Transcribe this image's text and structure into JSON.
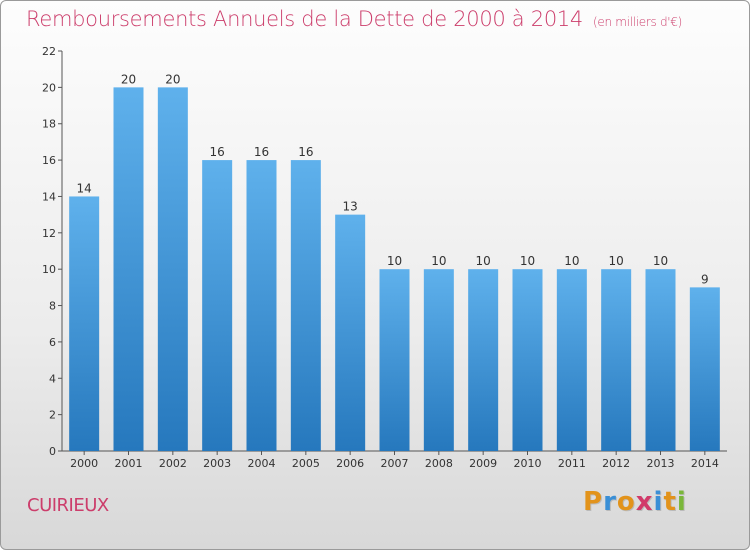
{
  "title": "Remboursements Annuels de la Dette de 2000 à 2014",
  "subtitle": "(en milliers d'€)",
  "location": "CUIRIEUX",
  "logo": {
    "text": "Proxiti",
    "colors": [
      "#e2931b",
      "#3a8fd6",
      "#e2931b",
      "#d13a6a",
      "#3a8fd6",
      "#e2931b",
      "#7ab73a"
    ]
  },
  "colors": {
    "title": "#cc3d6b",
    "bar_top": "#5fb1ec",
    "bar_bottom": "#2678bd",
    "axis": "#555555"
  },
  "chart_data": {
    "type": "bar",
    "title": "Remboursements Annuels de la Dette de 2000 à 2014",
    "xlabel": "",
    "ylabel": "",
    "categories": [
      "2000",
      "2001",
      "2002",
      "2003",
      "2004",
      "2005",
      "2006",
      "2007",
      "2008",
      "2009",
      "2010",
      "2011",
      "2012",
      "2013",
      "2014"
    ],
    "values": [
      14,
      20,
      20,
      16,
      16,
      16,
      13,
      10,
      10,
      10,
      10,
      10,
      10,
      10,
      9
    ],
    "ylim": [
      0,
      22
    ],
    "yticks": [
      0,
      2,
      4,
      6,
      8,
      10,
      12,
      14,
      16,
      18,
      20,
      22
    ],
    "grid": false,
    "data_labels": true
  }
}
